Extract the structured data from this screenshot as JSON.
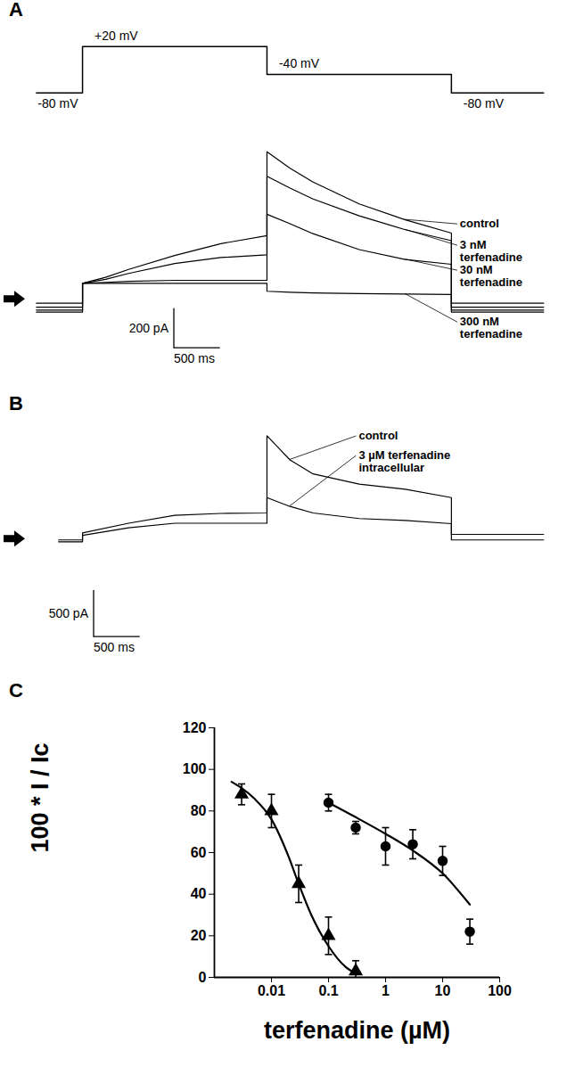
{
  "chart_data": [
    {
      "panel": "A",
      "type": "line",
      "x": [
        -500,
        0,
        0,
        2000,
        2000,
        4000,
        4000,
        5000
      ],
      "values": [
        -80,
        -80,
        20,
        20,
        -40,
        -40,
        -80,
        -80
      ],
      "level_labels": [
        "-80 mV",
        "+20 mV",
        "-40 mV",
        "-80 mV"
      ],
      "xlim": [
        -600,
        5200
      ],
      "ylim": [
        -100,
        35
      ],
      "color": "#000000",
      "tick_labels": false
    },
    {
      "type": "line",
      "x": [
        -500,
        0,
        0,
        250,
        500,
        1000,
        1500,
        2000,
        2000,
        2250,
        2500,
        3000,
        3500,
        4000,
        4000,
        5000
      ],
      "xlim": [
        -600,
        5200
      ],
      "ylim": [
        -300,
        800
      ],
      "baseline": 0,
      "tick_labels": false,
      "scale_bar": {
        "x": 500,
        "x_label": "500 ms",
        "y": 200,
        "y_label": "200 pA"
      },
      "series": [
        {
          "name": "control",
          "color": "#000000",
          "values": [
            -40,
            -40,
            80,
            110,
            150,
            220,
            280,
            320,
            743,
            660,
            590,
            480,
            400,
            333,
            -40,
            -40
          ]
        },
        {
          "name": "3 nM\nterfenadine",
          "color": "#000000",
          "values": [
            -20,
            -20,
            80,
            100,
            130,
            180,
            210,
            224,
            619,
            560,
            505,
            420,
            350,
            295,
            -20,
            -20
          ]
        },
        {
          "name": "30 nM\nterfenadine",
          "color": "#000000",
          "values": [
            -55,
            -55,
            80,
            85,
            90,
            95,
            95,
            95,
            428,
            380,
            330,
            250,
            200,
            176,
            -55,
            -55
          ]
        },
        {
          "name": "300 nM\nterfenadine",
          "color": "#000000",
          "values": [
            -65,
            -65,
            80,
            80,
            80,
            80,
            80,
            80,
            40,
            35,
            32,
            28,
            26,
            24,
            -65,
            -65
          ]
        }
      ]
    },
    {
      "panel": "B",
      "type": "line",
      "x": [
        -260,
        0,
        0,
        500,
        1000,
        1500,
        2000,
        2000,
        2250,
        2500,
        3000,
        3500,
        4000,
        4000,
        5000
      ],
      "xlim": [
        -600,
        5200
      ],
      "ylim": [
        -1100,
        1200
      ],
      "baseline": 0,
      "tick_labels": false,
      "scale_bar": {
        "x": 500,
        "x_label": "500 ms",
        "y": 500,
        "y_label": "500 pA"
      },
      "series": [
        {
          "name": "control",
          "color": "#000000",
          "values": [
            -10,
            -10,
            65,
            170,
            255,
            275,
            280,
            1110,
            850,
            700,
            590,
            535,
            445,
            50,
            50
          ]
        },
        {
          "name": "3 µM terfenadine\nintracellular",
          "color": "#000000",
          "values": [
            -30,
            -30,
            40,
            120,
            170,
            170,
            170,
            445,
            350,
            280,
            220,
            200,
            165,
            -10,
            -10
          ]
        }
      ]
    },
    {
      "panel": "C",
      "type": "scatter",
      "y_label": "100 * I / Ic",
      "x_label": "terfenadine (µM)",
      "log": "x",
      "grid": false,
      "xlim": [
        0.001,
        100
      ],
      "xticks": [
        0.01,
        0.1,
        1,
        10,
        100
      ],
      "ylim": [
        0,
        120
      ],
      "yticks": [
        0,
        20,
        40,
        60,
        80,
        100,
        120
      ],
      "series": [
        {
          "color": "#000000",
          "marker": "triangle",
          "x": [
            0.003,
            0.01,
            0.03,
            0.1,
            0.3
          ],
          "values": [
            88,
            80,
            45,
            20,
            3
          ],
          "errors": [
            5,
            8,
            9,
            9,
            5
          ],
          "fit_x": [
            0.002,
            0.003,
            0.005,
            0.01,
            0.02,
            0.03,
            0.05,
            0.1,
            0.2,
            0.3
          ],
          "fit_values": [
            94,
            91,
            86,
            76,
            58,
            45,
            30,
            15,
            5,
            2
          ]
        },
        {
          "color": "#000000",
          "marker": "circle",
          "x": [
            0.1,
            0.3,
            1,
            3,
            10,
            30
          ],
          "values": [
            84,
            72,
            63,
            64,
            56,
            22
          ],
          "errors": [
            4,
            3,
            9,
            7,
            7,
            6
          ],
          "fit_x": [
            0.1,
            0.3,
            1,
            3,
            10,
            30
          ],
          "fit_values": [
            84,
            77,
            69,
            61,
            50,
            35
          ]
        }
      ]
    }
  ]
}
